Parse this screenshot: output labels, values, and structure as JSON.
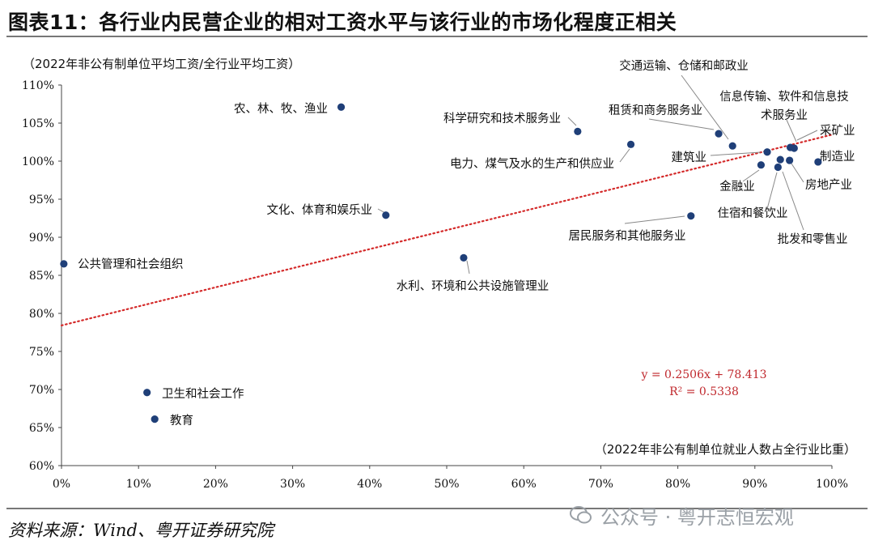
{
  "title": "图表11：各行业内民营企业的相对工资水平与该行业的市场化程度正相关",
  "source": "资料来源：Wind、粤开证券研究院",
  "watermark": "公众号 · 粤开志恒宏观",
  "colors": {
    "point": "#1f3f78",
    "trend": "#d42a2a",
    "equation": "#c0282d"
  },
  "chart_data": {
    "type": "scatter",
    "ylabel": "（2022年非公有制单位平均工资/全行业平均工资）",
    "xlabel": "（2022年非公有制单位就业人数占全行业比重）",
    "xlim": [
      0,
      100
    ],
    "ylim": [
      60,
      110
    ],
    "x_ticks": [
      0,
      10,
      20,
      30,
      40,
      50,
      60,
      70,
      80,
      90,
      100
    ],
    "y_ticks": [
      60,
      65,
      70,
      75,
      80,
      85,
      90,
      95,
      100,
      105,
      110
    ],
    "x_tick_labels": [
      "0%",
      "10%",
      "20%",
      "30%",
      "40%",
      "50%",
      "60%",
      "70%",
      "80%",
      "90%",
      "100%"
    ],
    "y_tick_labels": [
      "60%",
      "65%",
      "70%",
      "75%",
      "80%",
      "85%",
      "90%",
      "95%",
      "100%",
      "105%",
      "110%"
    ],
    "grid": false,
    "points": [
      {
        "label": "农、林、牧、渔业",
        "x": 36.3,
        "y": 107.1
      },
      {
        "label": "科学研究和技术服务业",
        "x": 67.0,
        "y": 103.9
      },
      {
        "label": "电力、煤气及水的生产和供应业",
        "x": 73.9,
        "y": 102.2
      },
      {
        "label": "交通运输、仓储和邮政业",
        "x": 87.1,
        "y": 102.0
      },
      {
        "label": "租赁和商务服务业",
        "x": 85.3,
        "y": 103.6
      },
      {
        "label": "信息传输、软件和信息技术服务业",
        "x": 94.6,
        "y": 101.8
      },
      {
        "label": "采矿业",
        "x": 95.1,
        "y": 101.7
      },
      {
        "label": "制造业",
        "x": 98.2,
        "y": 99.9
      },
      {
        "label": "建筑业",
        "x": 91.6,
        "y": 101.2
      },
      {
        "label": "金融业",
        "x": 90.8,
        "y": 99.5
      },
      {
        "label": "房地产业",
        "x": 94.5,
        "y": 100.1
      },
      {
        "label": "住宿和餐饮业",
        "x": 93.3,
        "y": 100.2
      },
      {
        "label": "批发和零售业",
        "x": 93.0,
        "y": 99.2
      },
      {
        "label": "文化、体育和娱乐业",
        "x": 42.1,
        "y": 92.9
      },
      {
        "label": "居民服务和其他服务业",
        "x": 81.7,
        "y": 92.8
      },
      {
        "label": "公共管理和社会组织",
        "x": 0.3,
        "y": 86.5
      },
      {
        "label": "水利、环境和公共设施管理业",
        "x": 52.2,
        "y": 87.3
      },
      {
        "label": "卫生和社会工作",
        "x": 11.1,
        "y": 69.6
      },
      {
        "label": "教育",
        "x": 12.1,
        "y": 66.1
      }
    ],
    "trendline": {
      "slope": 0.2506,
      "intercept": 78.413,
      "equation": "y = 0.2506x  + 78.413",
      "r2": "R² = 0.5338"
    }
  }
}
